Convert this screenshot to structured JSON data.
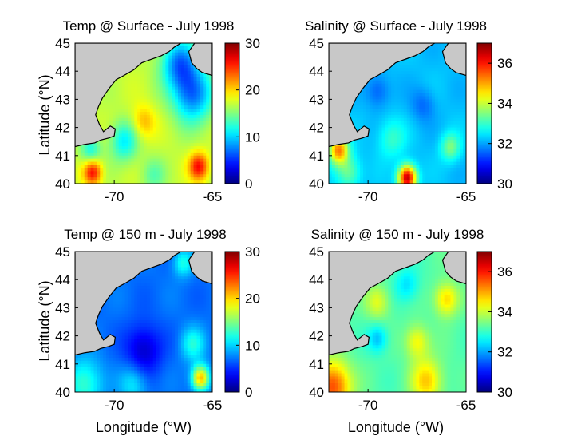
{
  "panels": [
    {
      "id": "temp-surface",
      "title": "Temp @ Surface - July 1998",
      "variable": "temperature",
      "colorbar": {
        "min": 0,
        "max": 30,
        "ticks": [
          "0",
          "10",
          "20",
          "30"
        ]
      },
      "base_value": 17,
      "blobs": [
        {
          "lon": -66.0,
          "lat": 43.2,
          "v": -10,
          "s": 1.0
        },
        {
          "lon": -66.7,
          "lat": 44.3,
          "v": -9,
          "s": 0.9
        },
        {
          "lon": -69.5,
          "lat": 41.5,
          "v": -6,
          "s": 0.7
        },
        {
          "lon": -71.2,
          "lat": 41.2,
          "v": -5,
          "s": 0.5
        },
        {
          "lon": -71.1,
          "lat": 40.4,
          "v": 9,
          "s": 0.45
        },
        {
          "lon": -65.7,
          "lat": 40.6,
          "v": 9,
          "s": 0.5
        },
        {
          "lon": -68.5,
          "lat": 42.2,
          "v": 4,
          "s": 0.6
        },
        {
          "lon": -68.0,
          "lat": 40.3,
          "v": -3,
          "s": 0.6
        }
      ]
    },
    {
      "id": "salinity-surface",
      "title": "Salinity @ Surface - July 1998",
      "variable": "salinity",
      "colorbar": {
        "min": 30,
        "max": 37,
        "ticks": [
          "30",
          "32",
          "34",
          "36"
        ]
      },
      "base_value": 32.2,
      "blobs": [
        {
          "lon": -68.0,
          "lat": 40.2,
          "v": 4.5,
          "s": 0.45
        },
        {
          "lon": -71.5,
          "lat": 41.2,
          "v": 3.0,
          "s": 0.5
        },
        {
          "lon": -71.0,
          "lat": 40.4,
          "v": 1.2,
          "s": 0.6
        },
        {
          "lon": -65.8,
          "lat": 41.3,
          "v": 1.3,
          "s": 0.5
        },
        {
          "lon": -68.8,
          "lat": 41.6,
          "v": 0.8,
          "s": 0.7
        },
        {
          "lon": -67.2,
          "lat": 42.8,
          "v": -0.6,
          "s": 0.6
        },
        {
          "lon": -69.5,
          "lat": 43.3,
          "v": -0.7,
          "s": 0.6
        }
      ]
    },
    {
      "id": "temp-150m",
      "title": "Temp @ 150 m - July 1998",
      "variable": "temperature",
      "colorbar": {
        "min": 0,
        "max": 30,
        "ticks": [
          "0",
          "10",
          "20",
          "30"
        ]
      },
      "base_value": 7,
      "blobs": [
        {
          "lon": -68.5,
          "lat": 41.5,
          "v": -5,
          "s": 0.9
        },
        {
          "lon": -71.5,
          "lat": 40.3,
          "v": 6,
          "s": 0.9
        },
        {
          "lon": -65.6,
          "lat": 40.5,
          "v": 14,
          "s": 0.45
        },
        {
          "lon": -66.0,
          "lat": 41.7,
          "v": 5,
          "s": 0.6
        },
        {
          "lon": -66.5,
          "lat": 44.6,
          "v": 5,
          "s": 0.5
        },
        {
          "lon": -69.0,
          "lat": 40.3,
          "v": 4,
          "s": 0.7
        }
      ]
    },
    {
      "id": "salinity-150m",
      "title": "Salinity @ 150 m - July 1998",
      "variable": "salinity",
      "colorbar": {
        "min": 30,
        "max": 37,
        "ticks": [
          "30",
          "32",
          "34",
          "36"
        ]
      },
      "base_value": 33.2,
      "blobs": [
        {
          "lon": -71.8,
          "lat": 40.2,
          "v": 2.5,
          "s": 0.9
        },
        {
          "lon": -67.0,
          "lat": 40.4,
          "v": 1.5,
          "s": 0.8
        },
        {
          "lon": -66.0,
          "lat": 43.3,
          "v": 1.5,
          "s": 0.6
        },
        {
          "lon": -67.5,
          "lat": 41.8,
          "v": 1.2,
          "s": 0.6
        },
        {
          "lon": -69.5,
          "lat": 43.2,
          "v": 1.0,
          "s": 0.6
        },
        {
          "lon": -69.5,
          "lat": 41.9,
          "v": -1.0,
          "s": 0.5
        },
        {
          "lon": -68.0,
          "lat": 43.8,
          "v": -0.8,
          "s": 0.6
        }
      ]
    }
  ],
  "axes": {
    "lon_range": [
      -72,
      -65
    ],
    "lat_range": [
      40,
      45
    ],
    "x_ticks": [
      "-70",
      "-65"
    ],
    "x_tick_values": [
      -70,
      -65
    ],
    "y_ticks": [
      "40",
      "41",
      "42",
      "43",
      "44",
      "45"
    ],
    "y_tick_values": [
      40,
      41,
      42,
      43,
      44,
      45
    ],
    "ylabel": "Latitude (°N)",
    "xlabel": "Longitude (°W)"
  },
  "colors": {
    "land": "#c8c8c8",
    "coast": "#000000",
    "colormap": "jet"
  },
  "coastline": [
    [
      -72.0,
      41.32
    ],
    [
      -71.5,
      41.4
    ],
    [
      -71.0,
      41.45
    ],
    [
      -70.7,
      41.55
    ],
    [
      -70.3,
      41.62
    ],
    [
      -70.0,
      41.7
    ],
    [
      -69.95,
      41.95
    ],
    [
      -70.2,
      42.05
    ],
    [
      -70.55,
      41.85
    ],
    [
      -70.75,
      42.1
    ],
    [
      -70.95,
      42.45
    ],
    [
      -70.8,
      42.75
    ],
    [
      -70.6,
      43.05
    ],
    [
      -70.25,
      43.4
    ],
    [
      -69.9,
      43.7
    ],
    [
      -69.5,
      43.85
    ],
    [
      -69.0,
      44.05
    ],
    [
      -68.6,
      44.3
    ],
    [
      -68.2,
      44.4
    ],
    [
      -67.6,
      44.55
    ],
    [
      -67.2,
      44.7
    ],
    [
      -66.95,
      44.85
    ],
    [
      -66.6,
      45.0
    ]
  ],
  "nova_scotia": [
    [
      -65.9,
      45.0
    ],
    [
      -66.2,
      44.7
    ],
    [
      -66.05,
      44.3
    ],
    [
      -65.8,
      44.1
    ],
    [
      -65.5,
      43.95
    ],
    [
      -65.0,
      43.85
    ],
    [
      -65.0,
      45.0
    ]
  ]
}
